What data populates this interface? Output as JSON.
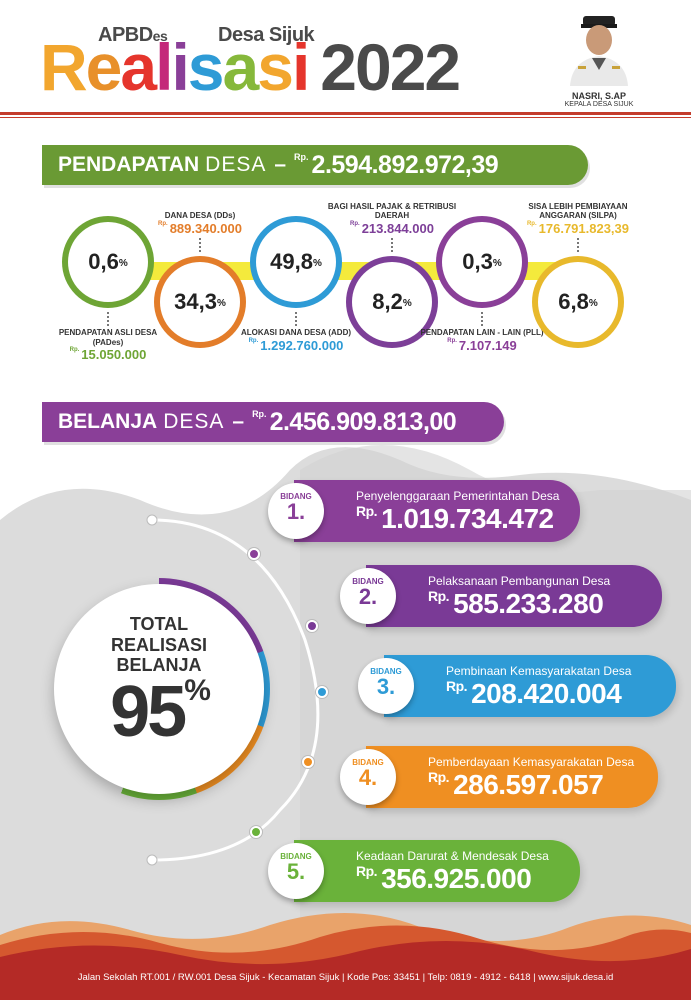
{
  "header": {
    "prefix": "APBD",
    "prefix_suffix": "es",
    "village": "Desa Sijuk",
    "title_letters": [
      "R",
      "e",
      "a",
      "l",
      "i",
      "s",
      "a",
      "s",
      "i"
    ],
    "title_colors": [
      "#f2a62e",
      "#e8902a",
      "#e5352c",
      "#c4297a",
      "#8a3f98",
      "#2e9bd6",
      "#86b83b",
      "#f2a62e",
      "#e5352c"
    ],
    "year": "2022",
    "official_name": "NASRI, S.AP",
    "official_role": "KEPALA DESA SIJUK"
  },
  "income": {
    "word1": "PENDAPATAN",
    "word2": "DESA",
    "dash": "–",
    "rp": "Rp.",
    "total": "2.594.892.972,39",
    "color": "#6a9a34",
    "items": [
      {
        "pct": "0,6",
        "unit": "%",
        "label": "PENDAPATAN ASLI DESA (PADes)",
        "amount": "15.050.000",
        "color": "#6ea535"
      },
      {
        "pct": "34,3",
        "unit": "%",
        "label": "DANA DESA (DDs)",
        "amount": "889.340.000",
        "color": "#e37d2a"
      },
      {
        "pct": "49,8",
        "unit": "%",
        "label": "ALOKASI DANA DESA (ADD)",
        "amount": "1.292.760.000",
        "color": "#2e9bd6"
      },
      {
        "pct": "8,2",
        "unit": "%",
        "label": "BAGI HASIL PAJAK & RETRIBUSI DAERAH",
        "amount": "213.844.000",
        "color": "#7d3f98"
      },
      {
        "pct": "0,3",
        "unit": "%",
        "label": "PENDAPATAN LAIN - LAIN (PLL)",
        "amount": "7.107.149",
        "color": "#8a3f98"
      },
      {
        "pct": "6,8",
        "unit": "%",
        "label": "SISA LEBIH PEMBIAYAAN ANGGARAN (SILPA)",
        "amount": "176.791.823,39",
        "color": "#e8b92c"
      }
    ]
  },
  "spending": {
    "word1": "BELANJA",
    "word2": "DESA",
    "dash": "–",
    "rp": "Rp.",
    "total": "2.456.909.813,00",
    "color": "#8a3f98",
    "total_line1": "TOTAL",
    "total_line2": "REALISASI",
    "total_line3": "BELANJA",
    "total_pct": "95",
    "total_unit": "%",
    "bidang_label": "BIDANG",
    "rp_short": "Rp.",
    "items": [
      {
        "num": "1.",
        "name": "Penyelenggaraan Pemerintahan Desa",
        "amount": "1.019.734.472",
        "color": "#8a3f98"
      },
      {
        "num": "2.",
        "name": "Pelaksanaan Pembangunan Desa",
        "amount": "585.233.280",
        "color": "#7a3a96"
      },
      {
        "num": "3.",
        "name": "Pembinaan Kemasyarakatan Desa",
        "amount": "208.420.004",
        "color": "#2e9bd6"
      },
      {
        "num": "4.",
        "name": "Pemberdayaan Kemasyarakatan Desa",
        "amount": "286.597.057",
        "color": "#ef8f22"
      },
      {
        "num": "5.",
        "name": "Keadaan Darurat & Mendesak Desa",
        "amount": "356.925.000",
        "color": "#6ab23a"
      }
    ]
  },
  "footer": {
    "text": "Jalan Sekolah RT.001 / RW.001 Desa Sijuk - Kecamatan Sijuk | Kode Pos: 33451 | Telp: 0819 - 4912 - 6418 | www.sijuk.desa.id"
  }
}
